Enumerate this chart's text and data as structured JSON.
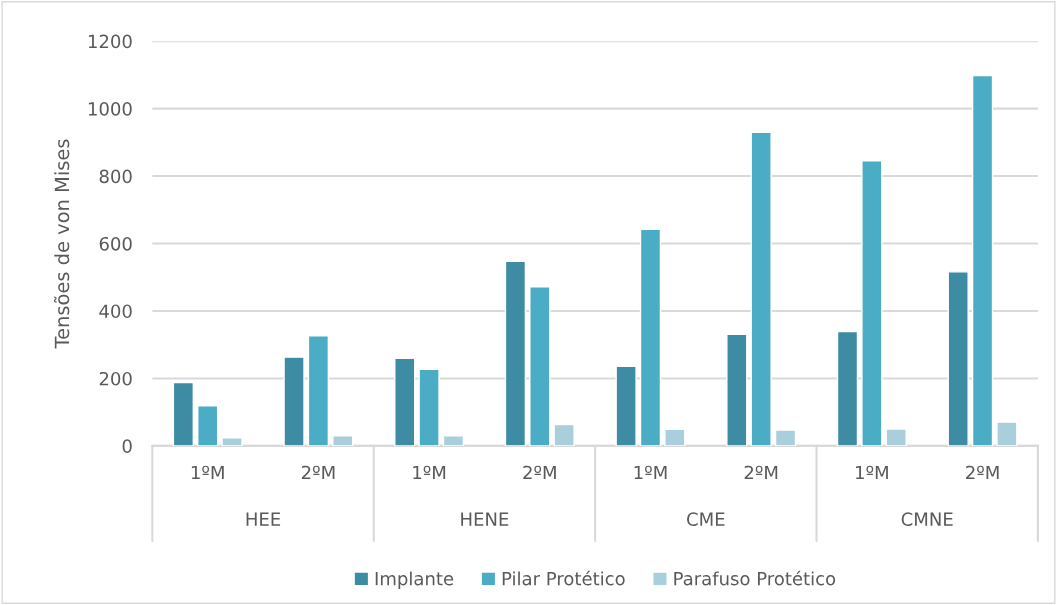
{
  "chart_data": {
    "type": "bar",
    "ylabel": "Tensões de von Mises",
    "categories": [
      "1ºM",
      "2ºM",
      "1ºM",
      "2ºM",
      "1ºM",
      "2ºM",
      "1ºM",
      "2ºM"
    ],
    "annotations": [
      "HEE",
      "HENE",
      "CME",
      "CMNE"
    ],
    "series": [
      {
        "name": "Implante",
        "color": "#3d8ca3",
        "values": [
          188,
          263,
          260,
          547,
          236,
          331,
          339,
          516
        ]
      },
      {
        "name": "Pilar Protético",
        "color": "#4bacc6",
        "values": [
          119,
          326,
          227,
          472,
          642,
          930,
          845,
          1098
        ]
      },
      {
        "name": "Parafuso Protético",
        "color": "#a9cfdd",
        "values": [
          24,
          30,
          30,
          63,
          49,
          47,
          50,
          71
        ]
      }
    ],
    "ylim": [
      0,
      1200
    ],
    "yticks": [
      0,
      200,
      400,
      600,
      800,
      1000,
      1200
    ],
    "grid": "y",
    "legend": "bottom"
  }
}
